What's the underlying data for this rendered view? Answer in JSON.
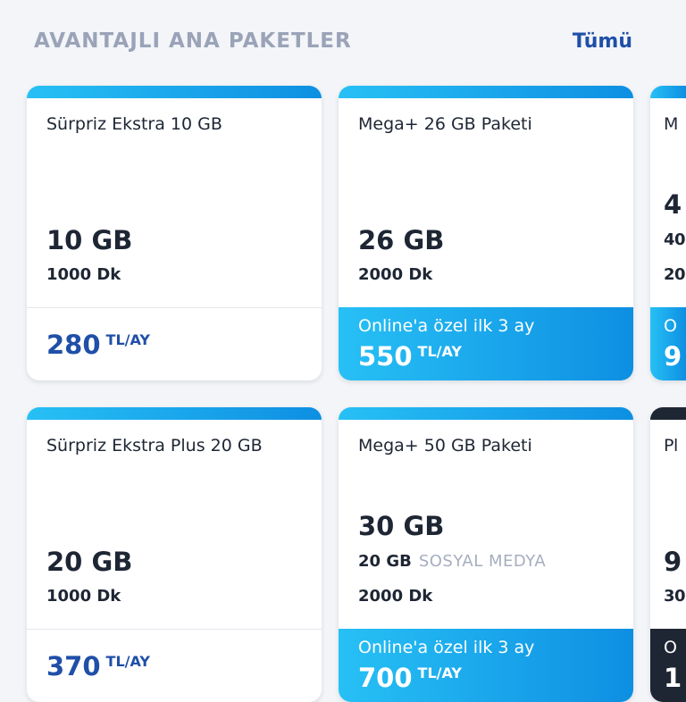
{
  "header": {
    "title": "AVANTAJLI ANA PAKETLER",
    "all_link": "Tümü"
  },
  "colors": {
    "accent": "#1f4fa8",
    "gradient_start": "#27c0f5",
    "gradient_end": "#0e8fe2",
    "dark": "#1f2633"
  },
  "cards": [
    {
      "title": "Sürpriz Ekstra 10 GB",
      "data": "10 GB",
      "minutes": "1000 Dk",
      "price": "280",
      "unit": "TL/AY"
    },
    {
      "title": "Mega+ 26 GB Paketi",
      "data": "26 GB",
      "minutes": "2000 Dk",
      "promo": "Online'a özel ilk 3 ay",
      "price": "550",
      "unit": "TL/AY"
    },
    {
      "title": "M",
      "data": "4",
      "extra": "40",
      "minutes": "20",
      "promo": "O",
      "price": "9"
    },
    {
      "title": "Sürpriz Ekstra Plus 20 GB",
      "data": "20 GB",
      "minutes": "1000 Dk",
      "price": "370",
      "unit": "TL/AY"
    },
    {
      "title": "Mega+ 50 GB Paketi",
      "data": "30 GB",
      "social_amount": "20 GB",
      "social_label": "SOSYAL MEDYA",
      "minutes": "2000 Dk",
      "promo": "Online'a özel ilk 3 ay",
      "price": "700",
      "unit": "TL/AY"
    },
    {
      "title": "Pl",
      "data": "9",
      "minutes": "30",
      "promo": "O",
      "price": "1"
    }
  ]
}
